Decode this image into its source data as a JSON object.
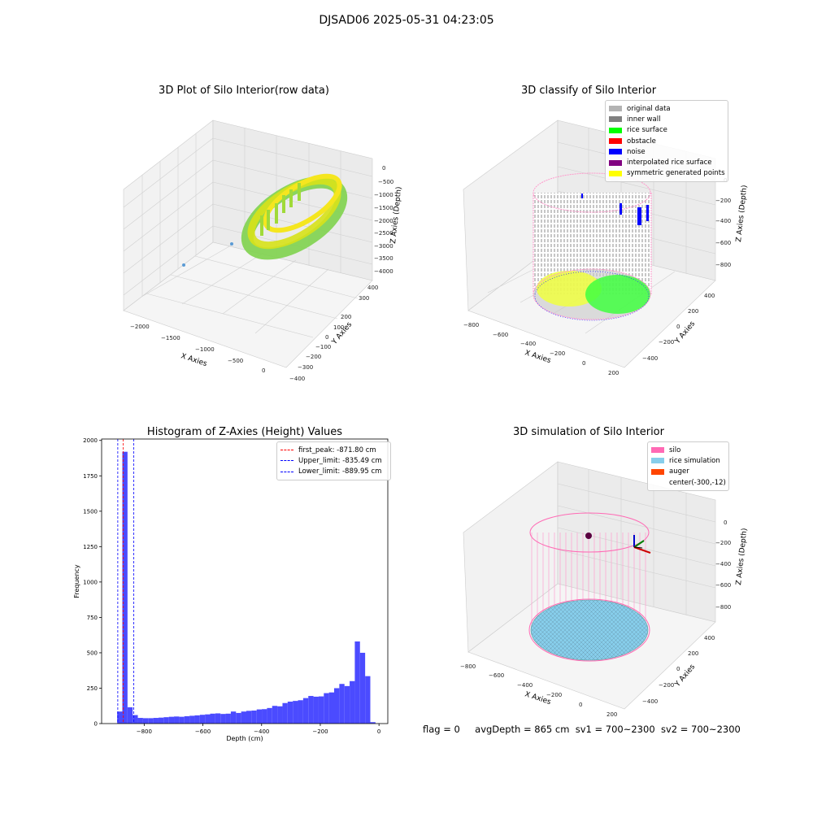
{
  "suptitle": "DJSAD06 2025-05-31 04:23:05",
  "chart_data": [
    {
      "type": "scatter3d",
      "title": "3D Plot of Silo Interior(row data)",
      "xlabel": "X Axies",
      "ylabel": "Y Axies",
      "zlabel": "Z Axies (Depth)",
      "xticks": [
        "−2000",
        "−1500",
        "−1000",
        "−500",
        "0"
      ],
      "yticks": [
        "400",
        "300",
        "200",
        "100",
        "0",
        "−100",
        "−200",
        "−300",
        "−400"
      ],
      "zticks": [
        "0",
        "−500",
        "−1000",
        "−1500",
        "−2000",
        "−2500",
        "−3000",
        "−3500",
        "−4000"
      ],
      "xlim": [
        -2200,
        100
      ],
      "ylim": [
        -450,
        450
      ],
      "zlim": [
        -4300,
        100
      ],
      "colormap": "viridis (green to yellow)",
      "description_points": "ring of points around x≈-300, y≈0, depth -1500 to -3000, plus two outliers"
    },
    {
      "type": "scatter3d",
      "title": "3D classify of Silo Interior",
      "xlabel": "X Axies",
      "ylabel": "Y Axies",
      "zlabel": "Z Axies (Depth)",
      "xticks": [
        "−800",
        "−600",
        "−400",
        "−200",
        "0",
        "200"
      ],
      "yticks": [
        "400",
        "200",
        "0",
        "−200",
        "−400"
      ],
      "zticks": [
        "0",
        "−200",
        "−400",
        "−600",
        "−800"
      ],
      "xlim": [
        -850,
        250
      ],
      "ylim": [
        -450,
        450
      ],
      "zlim": [
        -900,
        50
      ],
      "legend": [
        {
          "label": "original data",
          "color": "#b3b3b3"
        },
        {
          "label": "inner wall",
          "color": "#808080"
        },
        {
          "label": "rice surface",
          "color": "#00ff00"
        },
        {
          "label": "obstacle",
          "color": "#ff0000"
        },
        {
          "label": "noise",
          "color": "#0000ff"
        },
        {
          "label": "interpolated rice surface",
          "color": "#800080"
        },
        {
          "label": "symmetric generated points",
          "color": "#ffff00"
        }
      ]
    },
    {
      "type": "bar",
      "title": "Histogram of Z-Axies (Height) Values",
      "xlabel": "Depth (cm)",
      "ylabel": "Frequency",
      "xlim": [
        -945,
        30
      ],
      "ylim": [
        0,
        2010
      ],
      "xticks": [
        -800,
        -600,
        -400,
        -200,
        0
      ],
      "xtick_labels": [
        "−800",
        "−600",
        "−400",
        "−200",
        "0"
      ],
      "yticks": [
        0,
        250,
        500,
        750,
        1000,
        1250,
        1500,
        1750,
        2000
      ],
      "bar_color": "#4b4bff",
      "bin_start": -892,
      "bin_width": 17.6,
      "values": [
        85,
        1920,
        115,
        60,
        40,
        38,
        38,
        40,
        42,
        45,
        48,
        50,
        48,
        52,
        55,
        58,
        62,
        65,
        70,
        72,
        68,
        70,
        85,
        75,
        85,
        90,
        92,
        100,
        102,
        110,
        125,
        122,
        145,
        155,
        160,
        165,
        180,
        195,
        190,
        192,
        215,
        220,
        250,
        280,
        265,
        300,
        580,
        500,
        335,
        10
      ],
      "lines": [
        {
          "label": "first_peak: -871.80 cm",
          "x": -871.8,
          "color": "#ff0000"
        },
        {
          "label": "Upper_limit: -835.49 cm",
          "x": -835.49,
          "color": "#0000ff"
        },
        {
          "label": "Lower_limit: -889.95 cm",
          "x": -889.95,
          "color": "#0000ff"
        }
      ],
      "legend_position": "upper right"
    },
    {
      "type": "surface3d",
      "title": "3D simulation of Silo Interior",
      "xlabel": "X Axies",
      "ylabel": "Y Axies",
      "zlabel": "Z Axies (Depth)",
      "xticks": [
        "−800",
        "−600",
        "−400",
        "−200",
        "0",
        "200"
      ],
      "yticks": [
        "400",
        "200",
        "0",
        "−200",
        "−400"
      ],
      "zticks": [
        "0",
        "−200",
        "−400",
        "−600",
        "−800"
      ],
      "xlim": [
        -850,
        250
      ],
      "ylim": [
        -450,
        450
      ],
      "zlim": [
        -900,
        100
      ],
      "legend": [
        {
          "label": "silo",
          "color": "#ff69b4"
        },
        {
          "label": "rice simulation",
          "color": "#87ceeb"
        },
        {
          "label": "auger",
          "color": "#ff4500"
        },
        {
          "label": "center(-300,-12)",
          "color": ""
        }
      ]
    }
  ],
  "footer": {
    "flag": "flag = 0",
    "avg": "avgDepth = 865 cm",
    "sv1": "sv1 = 700~2300",
    "sv2": "sv2 = 700~2300"
  }
}
